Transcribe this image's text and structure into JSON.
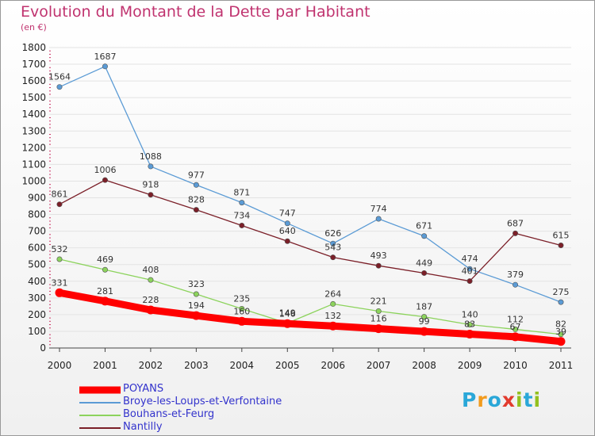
{
  "title": "Evolution du Montant de la Dette par Habitant",
  "unit": "(en €)",
  "logo": {
    "text": "Proxiti",
    "letter_colors": [
      "#2aa7d8",
      "#f29b1d",
      "#2aa7d8",
      "#e23b2e",
      "#93c01f",
      "#2aa7d8",
      "#93c01f"
    ]
  },
  "chart_data": {
    "type": "line",
    "x": [
      "2000",
      "2001",
      "2002",
      "2003",
      "2004",
      "2005",
      "2006",
      "2007",
      "2008",
      "2009",
      "2010",
      "2011"
    ],
    "ylim": [
      0,
      1800
    ],
    "yticks": [
      0,
      100,
      200,
      300,
      400,
      500,
      600,
      700,
      800,
      900,
      1000,
      1100,
      1200,
      1300,
      1400,
      1500,
      1600,
      1700,
      1800
    ],
    "grid": "horizontal",
    "legend_position": "bottom-left",
    "series": [
      {
        "name": "Broye-les-Loups-et-Verfontaine",
        "color": "#5b9bd5",
        "values": [
          1564,
          1687,
          1088,
          977,
          871,
          747,
          626,
          774,
          671,
          474,
          379,
          275
        ]
      },
      {
        "name": "Nantilly",
        "color": "#7b1f28",
        "values": [
          861,
          1006,
          918,
          828,
          734,
          640,
          543,
          493,
          449,
          401,
          687,
          615
        ]
      },
      {
        "name": "Bouhans-et-Feurg",
        "color": "#8cd35c",
        "values": [
          532,
          469,
          408,
          323,
          235,
          149,
          264,
          221,
          187,
          140,
          112,
          82
        ]
      },
      {
        "name": "POYANS",
        "color": "#ff0000",
        "values": [
          331,
          281,
          228,
          194,
          160,
          146,
          132,
          116,
          99,
          83,
          67,
          39
        ]
      }
    ],
    "legend_order": [
      "POYANS",
      "Broye-les-Loups-et-Verfontaine",
      "Bouhans-et-Feurg",
      "Nantilly"
    ]
  }
}
